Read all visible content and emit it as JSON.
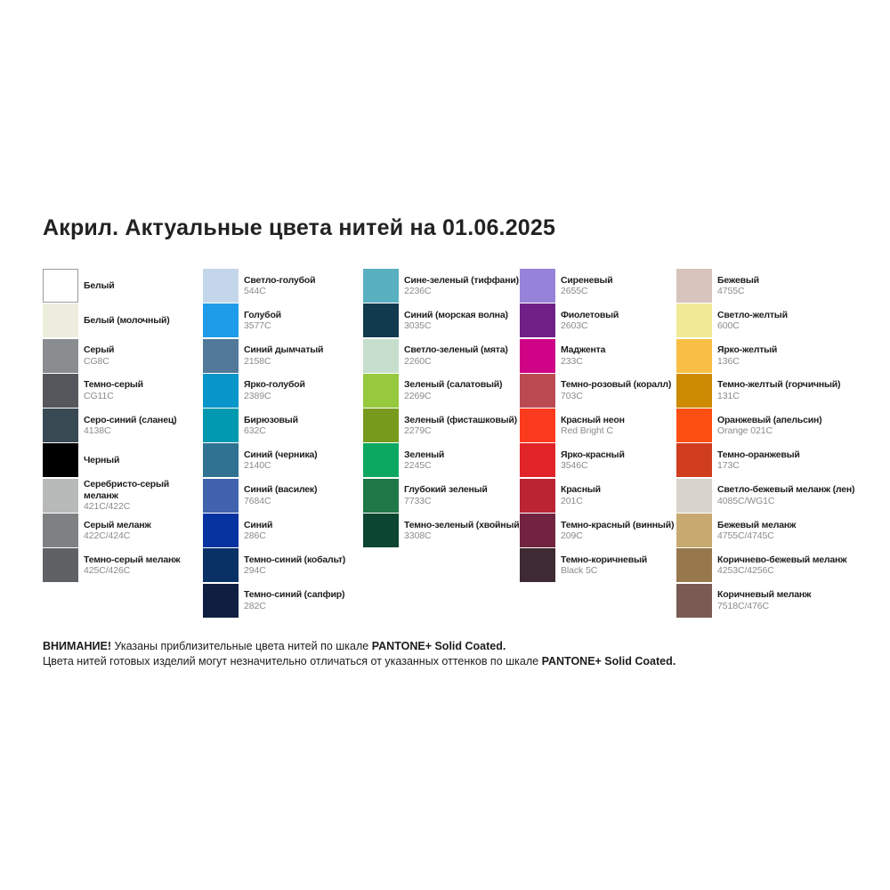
{
  "title": "Акрил. Актуальные цвета нитей на 01.06.2025",
  "columns": [
    {
      "items": [
        {
          "name": "Белый",
          "color": "#ffffff",
          "border": "#9b9b9b"
        },
        {
          "name": "Белый (молочный)",
          "color": "#edeedd"
        },
        {
          "name": "Серый",
          "code": "CG8C",
          "color": "#8a8d90"
        },
        {
          "name": "Темно-серый",
          "code": "CG11C",
          "color": "#55575c"
        },
        {
          "name": "Серо-синий (сланец)",
          "code": "4138C",
          "color": "#3a4a54"
        },
        {
          "name": "Черный",
          "color": "#000000"
        },
        {
          "name": "Серебристо-серый\nмеланж",
          "code": "421C/422C",
          "color": "#b8bab9"
        },
        {
          "name": "Серый меланж",
          "code": "422C/424C",
          "color": "#7e8182"
        },
        {
          "name": "Темно-серый меланж",
          "code": "425C/426C",
          "color": "#5e6264"
        }
      ]
    },
    {
      "items": [
        {
          "name": "Светло-голубой",
          "code": "544C",
          "color": "#c4d7ea"
        },
        {
          "name": "Голубой",
          "code": "3577C",
          "color": "#1e9ce9"
        },
        {
          "name": "Синий дымчатый",
          "code": "2158C",
          "color": "#53799a"
        },
        {
          "name": "Ярко-голубой",
          "code": "2389C",
          "color": "#0895c9"
        },
        {
          "name": "Бирюзовый",
          "code": "632C",
          "color": "#0099af"
        },
        {
          "name": "Синий (черника)",
          "code": "2140C",
          "color": "#2f7291"
        },
        {
          "name": "Синий (василек)",
          "code": "7684C",
          "color": "#4163ae"
        },
        {
          "name": "Синий",
          "code": "286C",
          "color": "#0733a1"
        },
        {
          "name": "Темно-синий (кобальт)",
          "code": "294C",
          "color": "#093166"
        },
        {
          "name": "Темно-синий (сапфир)",
          "code": "282C",
          "color": "#101f41"
        }
      ]
    },
    {
      "items": [
        {
          "name": "Сине-зеленый (тиффани)",
          "code": "2236C",
          "color": "#58b0c1"
        },
        {
          "name": "Синий (морская волна)",
          "code": "3035C",
          "color": "#123a4f"
        },
        {
          "name": "Светло-зеленый (мята)",
          "code": "2260C",
          "color": "#c7decd"
        },
        {
          "name": "Зеленый (салатовый)",
          "code": "2269C",
          "color": "#96c93e"
        },
        {
          "name": "Зеленый (фисташковый)",
          "code": "2279C",
          "color": "#789a1d"
        },
        {
          "name": "Зеленый",
          "code": "2245C",
          "color": "#0ca862"
        },
        {
          "name": "Глубокий зеленый",
          "code": "7733C",
          "color": "#1f7848"
        },
        {
          "name": "Темно-зеленый (хвойный)",
          "code": "3308C",
          "color": "#0c4531"
        }
      ]
    },
    {
      "items": [
        {
          "name": "Сиреневый",
          "code": "2655C",
          "color": "#9682d8"
        },
        {
          "name": "Фиолетовый",
          "code": "2603C",
          "color": "#6f2086"
        },
        {
          "name": "Маджента",
          "code": "233C",
          "color": "#ce0386"
        },
        {
          "name": "Темно-розовый (коралл)",
          "code": "703C",
          "color": "#bb4b53"
        },
        {
          "name": "Красный неон",
          "code": "Red Bright C",
          "color": "#fc3a1d"
        },
        {
          "name": "Ярко-красный",
          "code": "3546C",
          "color": "#e02428"
        },
        {
          "name": "Красный",
          "code": "201C",
          "color": "#ba2433"
        },
        {
          "name": "Темно-красный (винный)",
          "code": "209C",
          "color": "#722340"
        },
        {
          "name": "Темно-коричневый",
          "code": "Black 5C",
          "color": "#3e2a32"
        }
      ]
    },
    {
      "items": [
        {
          "name": "Бежевый",
          "code": "4755C",
          "color": "#d6c4bd"
        },
        {
          "name": "Светло-желтый",
          "code": "600C",
          "color": "#f0ea97"
        },
        {
          "name": "Ярко-желтый",
          "code": "136C",
          "color": "#f9bf45"
        },
        {
          "name": "Темно-желтый (горчичный)",
          "code": "131C",
          "color": "#cc8b03"
        },
        {
          "name": "Оранжевый (апельсин)",
          "code": "Orange 021C",
          "color": "#fc4f12"
        },
        {
          "name": "Темно-оранжевый",
          "code": "173C",
          "color": "#d03d1f"
        },
        {
          "name": "Светло-бежевый меланж (лен)",
          "code": "4085C/WG1C",
          "color": "#d8d4cb"
        },
        {
          "name": "Бежевый меланж",
          "code": "4755C/4745C",
          "color": "#c8aa70"
        },
        {
          "name": "Коричнево-бежевый меланж",
          "code": "4253C/4256C",
          "color": "#97784c"
        },
        {
          "name": "Коричневый меланж",
          "code": "7518C/476C",
          "color": "#795b54"
        }
      ]
    }
  ],
  "footer": {
    "line1_prefix": "ВНИМАНИЕ!",
    "line1_body": "Указаны приблизительные цвета нитей по шкале",
    "line1_suffix": "PANTONE+ Solid Coated.",
    "line2_body": "Цвета нитей готовых изделий могут незначительно отличаться от указанных оттенков по шкале",
    "line2_suffix": "PANTONE+ Solid Coated."
  }
}
